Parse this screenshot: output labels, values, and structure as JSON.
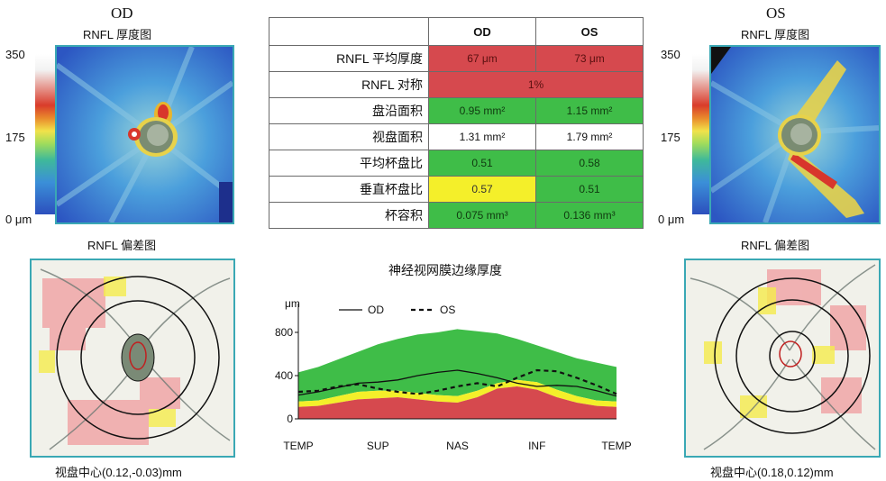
{
  "od": {
    "eye": "OD",
    "map_title": "RNFL 厚度图",
    "scale_max": "350",
    "scale_mid": "175",
    "scale_min": "0 μm",
    "dev_title": "RNFL 偏差图",
    "disc_center": "视盘中心(0.12,-0.03)mm"
  },
  "os": {
    "eye": "OS",
    "map_title": "RNFL 厚度图",
    "scale_max": "350",
    "scale_mid": "175",
    "scale_min": "0 μm",
    "dev_title": "RNFL 偏差图",
    "disc_center": "视盘中心(0.18,0.12)mm"
  },
  "colors": {
    "red": "#d6494e",
    "green": "#3fbd48",
    "yellow": "#f4ef2a",
    "frame": "#3aa8b4"
  },
  "table": {
    "head_od": "OD",
    "head_os": "OS",
    "rows": [
      {
        "label": "RNFL 平均厚度",
        "od": "67 μm",
        "os": "73 μm",
        "od_status": "red",
        "os_status": "red"
      },
      {
        "label": "RNFL 对称",
        "both": "1%",
        "status": "red"
      },
      {
        "label": "盘沿面积",
        "od": "0.95 mm²",
        "os": "1.15 mm²",
        "od_status": "green",
        "os_status": "green"
      },
      {
        "label": "视盘面积",
        "od": "1.31 mm²",
        "os": "1.79 mm²",
        "od_status": "white",
        "os_status": "white"
      },
      {
        "label": "平均杯盘比",
        "od": "0.51",
        "os": "0.58",
        "od_status": "green",
        "os_status": "green"
      },
      {
        "label": "垂直杯盘比",
        "od": "0.57",
        "os": "0.51",
        "od_status": "yellow",
        "os_status": "green"
      },
      {
        "label": "杯容积",
        "od": "0.075 mm³",
        "os": "0.136 mm³",
        "od_status": "green",
        "os_status": "green"
      }
    ]
  },
  "chart_data": {
    "type": "line",
    "title": "神经视网膜边缘厚度",
    "ylabel": "μm",
    "ylim": [
      0,
      1000
    ],
    "yticks": [
      "800",
      "400",
      "0"
    ],
    "xtick_labels": [
      "TEMP",
      "SUP",
      "NAS",
      "INF",
      "TEMP"
    ],
    "x": [
      0,
      22.5,
      45,
      67.5,
      90,
      112.5,
      135,
      157.5,
      180,
      202.5,
      225,
      247.5,
      270,
      292.5,
      315,
      337.5,
      360
    ],
    "series": [
      {
        "name": "OD",
        "style": "solid",
        "values": [
          220,
          250,
          290,
          330,
          340,
          360,
          400,
          430,
          450,
          420,
          380,
          330,
          300,
          310,
          300,
          260,
          210
        ]
      },
      {
        "name": "OS",
        "style": "dashed",
        "values": [
          250,
          260,
          300,
          320,
          280,
          250,
          230,
          260,
          300,
          330,
          300,
          380,
          450,
          440,
          380,
          310,
          230
        ]
      }
    ],
    "bands": {
      "red_upper": [
        110,
        120,
        150,
        180,
        190,
        200,
        180,
        160,
        150,
        200,
        280,
        300,
        270,
        200,
        150,
        120,
        110
      ],
      "yellow_upper": [
        160,
        170,
        210,
        250,
        260,
        260,
        240,
        220,
        210,
        260,
        330,
        360,
        340,
        270,
        210,
        170,
        160
      ],
      "green_upper": [
        430,
        480,
        550,
        620,
        690,
        740,
        780,
        800,
        830,
        810,
        790,
        740,
        680,
        620,
        560,
        520,
        480
      ]
    },
    "legend_position": "top"
  }
}
